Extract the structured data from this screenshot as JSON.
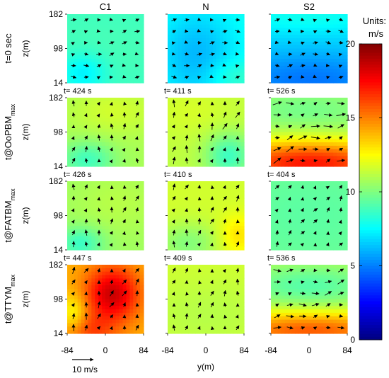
{
  "chart_data": {
    "type": "heatmap",
    "columns": [
      "C1",
      "N",
      "S2"
    ],
    "rows": [
      {
        "label_main": "t=0 sec",
        "label_sub": ""
      },
      {
        "label_main": "t@OoPBM",
        "label_sub": "max"
      },
      {
        "label_main": "t@FATBM",
        "label_sub": "max"
      },
      {
        "label_main": "t@TTYM",
        "label_sub": "max"
      }
    ],
    "time_labels": [
      [
        "",
        "",
        ""
      ],
      [
        "t= 424 s",
        "t= 411 s",
        "t= 526 s"
      ],
      [
        "t= 426 s",
        "t= 410 s",
        "t= 404 s"
      ],
      [
        "t= 447 s",
        "t= 409 s",
        "t= 536 s"
      ]
    ],
    "ylabel": "z(m)",
    "y_ticks": [
      14,
      98,
      182
    ],
    "xlabel": "y(m)",
    "x_ticks": [
      -84,
      0,
      84
    ],
    "xlim": [
      -84,
      84
    ],
    "ylim": [
      14,
      182
    ],
    "colorbar": {
      "title": "Units:",
      "unit": "m/s",
      "min": 0,
      "max": 20,
      "ticks": [
        0,
        5,
        10,
        15,
        20
      ],
      "colormap": "jet"
    },
    "reference_vector": {
      "label": "10 m/s",
      "magnitude": 10
    },
    "panels": [
      [
        {
          "base": 8.6,
          "blobs": [
            [
              -50,
              40,
              50,
              45,
              -1.5
            ],
            [
              0,
              100,
              200,
              110,
              0.3
            ]
          ],
          "arrow_rot": 8,
          "arrow_len": 0.55
        },
        {
          "base": 7.9,
          "blobs": [
            [
              -20,
              80,
              90,
              120,
              -1.8
            ],
            [
              60,
              30,
              60,
              40,
              1.0
            ]
          ],
          "arrow_rot": 0,
          "arrow_len": 0.55
        },
        {
          "base": 6.8,
          "blobs": [
            [
              0,
              20,
              200,
              70,
              -2.0
            ],
            [
              0,
              175,
              200,
              40,
              1.0
            ]
          ],
          "arrow_rot": 0,
          "arrow_len": 0.55
        }
      ],
      [
        {
          "base": 10.8,
          "blobs": [
            [
              -40,
              30,
              60,
              45,
              -2.0
            ],
            [
              20,
              150,
              100,
              60,
              0.8
            ]
          ],
          "arrow_rot": 80,
          "arrow_len": 0.6
        },
        {
          "base": 11.2,
          "blobs": [
            [
              50,
              40,
              50,
              55,
              -2.5
            ],
            [
              -30,
              150,
              100,
              70,
              0.5
            ]
          ],
          "arrow_rot": 75,
          "arrow_len": 0.75
        },
        {
          "base": 10.6,
          "blobs": [
            [
              0,
              22,
              220,
              55,
              6.5
            ],
            [
              -10,
              150,
              140,
              45,
              -0.8
            ]
          ],
          "arrow_rot": 15,
          "arrow_len": 0.95
        }
      ],
      [
        {
          "base": 10.6,
          "blobs": [
            [
              -55,
              30,
              50,
              40,
              -2.0
            ],
            [
              30,
              130,
              100,
              80,
              0.5
            ]
          ],
          "arrow_rot": 80,
          "arrow_len": 0.6
        },
        {
          "base": 11.6,
          "blobs": [
            [
              -40,
              30,
              70,
              50,
              -1.5
            ],
            [
              70,
              50,
              40,
              50,
              1.5
            ]
          ],
          "arrow_rot": 75,
          "arrow_len": 0.65
        },
        {
          "base": 9.8,
          "blobs": [
            [
              0,
              100,
              200,
              130,
              -0.5
            ]
          ],
          "arrow_rot": 60,
          "arrow_len": 0.55
        }
      ],
      [
        {
          "base": 14.0,
          "blobs": [
            [
              15,
              110,
              60,
              70,
              4.5
            ],
            [
              -70,
              60,
              30,
              50,
              -2.0
            ],
            [
              -40,
              20,
              60,
              40,
              2.0
            ]
          ],
          "arrow_rot": 70,
          "arrow_len": 0.7
        },
        {
          "base": 11.6,
          "blobs": [
            [
              0,
              60,
              140,
              90,
              -0.5
            ]
          ],
          "arrow_rot": 80,
          "arrow_len": 0.6
        },
        {
          "base": 11.2,
          "blobs": [
            [
              0,
              22,
              220,
              45,
              4.5
            ],
            [
              0,
              130,
              160,
              55,
              -2.0
            ]
          ],
          "arrow_rot": 10,
          "arrow_len": 0.8
        }
      ]
    ]
  }
}
